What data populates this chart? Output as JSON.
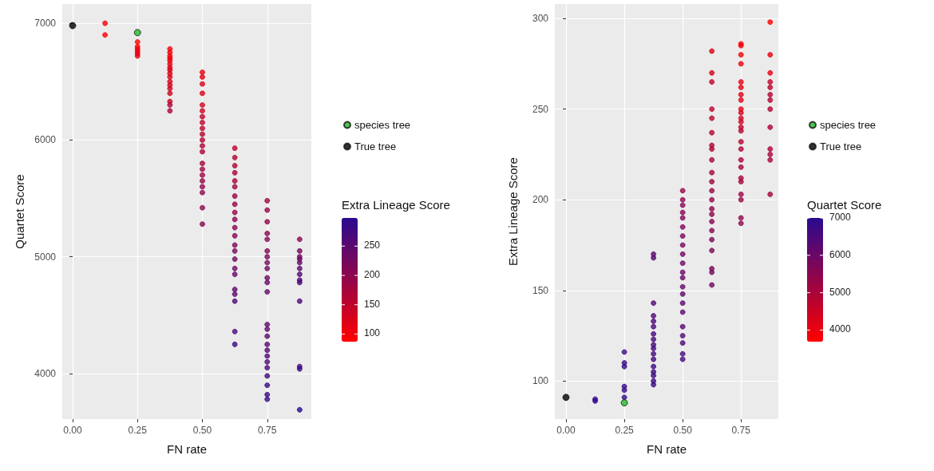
{
  "chart_data": [
    {
      "type": "scatter",
      "xlabel": "FN rate",
      "ylabel": "Quartet Score",
      "clabel": "Extra Lineage Score",
      "clim": [
        87,
        298
      ],
      "cticks": [
        100,
        150,
        200,
        250
      ],
      "xlim": [
        -0.04,
        0.92
      ],
      "xticks": [
        {
          "value": 0,
          "label": "0.00"
        },
        {
          "value": 0.25,
          "label": "0.25"
        },
        {
          "value": 0.5,
          "label": "0.50"
        },
        {
          "value": 0.75,
          "label": "0.75"
        }
      ],
      "ylim": [
        3610,
        7165
      ],
      "yticks": [
        4000,
        5000,
        6000,
        7000
      ],
      "grid": true,
      "legend": "right",
      "marker": "circle",
      "series": [
        {
          "x": [
            0.125,
            0.125,
            0.25,
            0.25,
            0.25,
            0.25,
            0.25,
            0.25,
            0.375,
            0.375,
            0.375,
            0.375,
            0.375,
            0.375,
            0.375,
            0.375,
            0.375,
            0.375,
            0.375,
            0.375,
            0.375,
            0.375,
            0.375,
            0.375,
            0.375,
            0.5,
            0.5,
            0.5,
            0.5,
            0.5,
            0.5,
            0.5,
            0.5,
            0.5,
            0.5,
            0.5,
            0.5,
            0.5,
            0.5,
            0.5,
            0.5,
            0.5,
            0.5,
            0.5,
            0.5,
            0.5,
            0.625,
            0.625,
            0.625,
            0.625,
            0.625,
            0.625,
            0.625,
            0.625,
            0.625,
            0.625,
            0.625,
            0.625,
            0.625,
            0.625,
            0.625,
            0.625,
            0.625,
            0.625,
            0.625,
            0.625,
            0.625,
            0.625,
            0.75,
            0.75,
            0.75,
            0.75,
            0.75,
            0.75,
            0.75,
            0.75,
            0.75,
            0.75,
            0.75,
            0.75,
            0.75,
            0.75,
            0.75,
            0.75,
            0.75,
            0.75,
            0.75,
            0.75,
            0.75,
            0.75,
            0.75,
            0.75,
            0.875,
            0.875,
            0.875,
            0.875,
            0.875,
            0.875,
            0.875,
            0.875,
            0.875,
            0.875,
            0.875,
            0.875,
            0.875
          ],
          "values": [
            7000,
            6900,
            6840,
            6800,
            6780,
            6760,
            6740,
            6720,
            6780,
            6750,
            6720,
            6700,
            6680,
            6650,
            6620,
            6600,
            6570,
            6540,
            6500,
            6470,
            6440,
            6400,
            6330,
            6300,
            6250,
            6580,
            6540,
            6480,
            6400,
            6300,
            6250,
            6200,
            6150,
            6100,
            6050,
            6000,
            5950,
            5900,
            5800,
            5750,
            5700,
            5650,
            5600,
            5550,
            5420,
            5280,
            5930,
            5850,
            5780,
            5720,
            5650,
            5600,
            5520,
            5450,
            5380,
            5320,
            5250,
            5180,
            5100,
            5050,
            4980,
            4900,
            4850,
            4720,
            4680,
            4620,
            4360,
            4250,
            5480,
            5400,
            5300,
            5200,
            5150,
            5050,
            5000,
            4950,
            4900,
            4820,
            4780,
            4700,
            4420,
            4380,
            4320,
            4250,
            4200,
            4150,
            4100,
            4050,
            3980,
            3900,
            3820,
            3780,
            5150,
            5050,
            5000,
            4980,
            4950,
            4900,
            4850,
            4800,
            4780,
            4620,
            4060,
            4040,
            3690
          ],
          "colors": [
            "#fd0001",
            "#fc0002",
            "#fb0003",
            "#f70005",
            "#f50007",
            "#ea010e",
            "#e80110",
            "#e20114",
            "#f40108",
            "#f20109",
            "#ef010b",
            "#ed010c",
            "#ea010e",
            "#e60111",
            "#e30113",
            "#e00115",
            "#de0217",
            "#db0219",
            "#d8021b",
            "#d4021d",
            "#d1021f",
            "#ce0221",
            "#c60326",
            "#ad0437",
            "#ab0439",
            "#e60111",
            "#e30113",
            "#dd0217",
            "#d9021a",
            "#d4021d",
            "#cc0223",
            "#c60326",
            "#c1032a",
            "#bd032c",
            "#b80330",
            "#b50332",
            "#b00435",
            "#ab0439",
            "#a6043c",
            "#a1043f",
            "#9c0543",
            "#970546",
            "#940548",
            "#90054b",
            "#8d054d",
            "#880651",
            "#bc032d",
            "#b50332",
            "#b30433",
            "#a9043a",
            "#a3043e",
            "#9e0542",
            "#990545",
            "#950548",
            "#92054a",
            "#8d054d",
            "#880651",
            "#830654",
            "#7e0657",
            "#77065c",
            "#710760",
            "#6f0762",
            "#680766",
            "#60076c",
            "#5a086f",
            "#4b0879",
            "#46097d",
            "#3a0985",
            "#9a0544",
            "#970546",
            "#8d054d",
            "#8a054f",
            "#830654",
            "#810655",
            "#7b0659",
            "#77065c",
            "#710760",
            "#6d0763",
            "#670767",
            "#650768",
            "#62076a",
            "#60076c",
            "#5c086e",
            "#5a086f",
            "#550873",
            "#520875",
            "#4e0877",
            "#4b0879",
            "#410980",
            "#3c0984",
            "#370987",
            "#360988",
            "#8a054f",
            "#77065c",
            "#74075e",
            "#710760",
            "#650768",
            "#5a086f",
            "#550873",
            "#520875",
            "#4e0877",
            "#4b0879",
            "#46097d",
            "#3c0984",
            "#2a0a90"
          ],
          "cvalues": [
            89,
            90,
            91,
            95,
            97,
            108,
            110,
            116,
            98,
            100,
            103,
            105,
            108,
            112,
            115,
            118,
            120,
            123,
            126,
            130,
            133,
            136,
            143,
            168,
            170,
            112,
            115,
            121,
            125,
            130,
            138,
            143,
            148,
            152,
            157,
            160,
            165,
            170,
            175,
            180,
            185,
            190,
            193,
            197,
            200,
            205,
            153,
            160,
            162,
            172,
            178,
            183,
            188,
            192,
            195,
            200,
            205,
            210,
            215,
            222,
            228,
            230,
            237,
            245,
            250,
            265,
            270,
            282,
            187,
            190,
            200,
            203,
            210,
            212,
            218,
            222,
            228,
            232,
            238,
            240,
            243,
            245,
            248,
            250,
            255,
            258,
            262,
            265,
            275,
            280,
            285,
            286,
            203,
            222,
            225,
            228,
            240,
            250,
            255,
            258,
            262,
            265,
            270,
            280,
            298
          ]
        },
        {
          "name": "species tree",
          "color": "#22bb22",
          "x": [
            0.25
          ],
          "values": [
            6920
          ]
        },
        {
          "name": "True tree",
          "color": "#000000",
          "x": [
            0
          ],
          "values": [
            6980
          ]
        }
      ]
    },
    {
      "type": "scatter",
      "xlabel": "FN rate",
      "ylabel": "Extra Lineage Score",
      "clabel": "Quartet Score",
      "clim": [
        3690,
        7000
      ],
      "cticks": [
        4000,
        5000,
        6000,
        7000
      ],
      "xlim": [
        -0.048,
        0.91
      ],
      "xticks": [
        {
          "value": 0,
          "label": "0.00"
        },
        {
          "value": 0.25,
          "label": "0.25"
        },
        {
          "value": 0.5,
          "label": "0.50"
        },
        {
          "value": 0.75,
          "label": "0.75"
        }
      ],
      "ylim": [
        79,
        308
      ],
      "yticks": [
        100,
        150,
        200,
        250,
        300
      ],
      "grid": true,
      "legend": "right",
      "marker": "circle",
      "series": [
        {
          "x": [
            0.125,
            0.125,
            0.25,
            0.25,
            0.25,
            0.25,
            0.25,
            0.25,
            0.375,
            0.375,
            0.375,
            0.375,
            0.375,
            0.375,
            0.375,
            0.375,
            0.375,
            0.375,
            0.375,
            0.375,
            0.375,
            0.375,
            0.375,
            0.375,
            0.375,
            0.5,
            0.5,
            0.5,
            0.5,
            0.5,
            0.5,
            0.5,
            0.5,
            0.5,
            0.5,
            0.5,
            0.5,
            0.5,
            0.5,
            0.5,
            0.5,
            0.5,
            0.5,
            0.5,
            0.5,
            0.5,
            0.625,
            0.625,
            0.625,
            0.625,
            0.625,
            0.625,
            0.625,
            0.625,
            0.625,
            0.625,
            0.625,
            0.625,
            0.625,
            0.625,
            0.625,
            0.625,
            0.625,
            0.625,
            0.625,
            0.625,
            0.625,
            0.625,
            0.75,
            0.75,
            0.75,
            0.75,
            0.75,
            0.75,
            0.75,
            0.75,
            0.75,
            0.75,
            0.75,
            0.75,
            0.75,
            0.75,
            0.75,
            0.75,
            0.75,
            0.75,
            0.75,
            0.75,
            0.75,
            0.75,
            0.75,
            0.75,
            0.875,
            0.875,
            0.875,
            0.875,
            0.875,
            0.875,
            0.875,
            0.875,
            0.875,
            0.875,
            0.875,
            0.875,
            0.875
          ],
          "values": [
            89,
            90,
            91,
            95,
            97,
            108,
            110,
            116,
            98,
            100,
            103,
            105,
            108,
            112,
            115,
            118,
            120,
            123,
            126,
            130,
            133,
            136,
            143,
            168,
            170,
            112,
            115,
            121,
            125,
            130,
            138,
            143,
            148,
            152,
            157,
            160,
            165,
            170,
            175,
            180,
            185,
            190,
            193,
            197,
            200,
            205,
            153,
            160,
            162,
            172,
            178,
            183,
            188,
            192,
            195,
            200,
            205,
            210,
            215,
            222,
            228,
            230,
            237,
            245,
            250,
            265,
            270,
            282,
            187,
            190,
            200,
            203,
            210,
            212,
            218,
            222,
            228,
            232,
            238,
            240,
            243,
            245,
            248,
            250,
            255,
            258,
            262,
            265,
            275,
            280,
            285,
            286,
            203,
            222,
            225,
            228,
            240,
            250,
            255,
            258,
            262,
            265,
            270,
            280,
            298
          ],
          "colors": [
            "#2a0a90",
            "#300a8c",
            "#340a89",
            "#370987",
            "#380986",
            "#390986",
            "#3b0985",
            "#3c0984",
            "#380986",
            "#3a0985",
            "#3c0984",
            "#3d0983",
            "#3f0982",
            "#410981",
            "#42097f",
            "#44097f",
            "#46097d",
            "#48097c",
            "#4a087a",
            "#4c0879",
            "#4e0878",
            "#510876",
            "#550873",
            "#570872",
            "#5a086f",
            "#45097e",
            "#48097c",
            "#4b0879",
            "#510876",
            "#570872",
            "#5a086f",
            "#5d086d",
            "#61076b",
            "#640769",
            "#670767",
            "#6a0764",
            "#6e0762",
            "#710760",
            "#77065c",
            "#7a065a",
            "#7e0657",
            "#810655",
            "#840653",
            "#870651",
            "#90054b",
            "#990545",
            "#6f0761",
            "#74075e",
            "#79065b",
            "#7c0658",
            "#810655",
            "#840653",
            "#890650",
            "#8e054d",
            "#92054a",
            "#960547",
            "#9b0544",
            "#9f0441",
            "#a4043d",
            "#a7043b",
            "#ac0438",
            "#b10435",
            "#b40432",
            "#bd032d",
            "#bf032b",
            "#c30328",
            "#d4021d",
            "#db0218",
            "#8c054e",
            "#91054a",
            "#970546",
            "#9e0542",
            "#a10440",
            "#a7043b",
            "#ab0439",
            "#ae0437",
            "#b10435",
            "#b60331",
            "#b9032f",
            "#be032c",
            "#d00220",
            "#d3021e",
            "#d6021b",
            "#db0218",
            "#de0216",
            "#e10114",
            "#e50112",
            "#e80110",
            "#ec010d",
            "#f10109",
            "#f70006",
            "#f90004",
            "#a10440",
            "#a7043b",
            "#ab0439",
            "#ac0438",
            "#ae0437",
            "#b10435",
            "#b40432",
            "#b80330",
            "#b9032f",
            "#c30328",
            "#e70110",
            "#e8010f",
            "#ff0000"
          ],
          "cvalues": [
            7000,
            6900,
            6840,
            6800,
            6780,
            6760,
            6740,
            6720,
            6780,
            6750,
            6720,
            6700,
            6680,
            6650,
            6620,
            6600,
            6570,
            6540,
            6500,
            6470,
            6440,
            6400,
            6330,
            6300,
            6250,
            6580,
            6540,
            6480,
            6400,
            6300,
            6250,
            6200,
            6150,
            6100,
            6050,
            6000,
            5950,
            5900,
            5800,
            5750,
            5700,
            5650,
            5600,
            5550,
            5420,
            5280,
            5930,
            5850,
            5780,
            5720,
            5650,
            5600,
            5520,
            5450,
            5380,
            5320,
            5250,
            5180,
            5100,
            5050,
            4980,
            4900,
            4850,
            4720,
            4680,
            4620,
            4360,
            4250,
            5480,
            5400,
            5300,
            5200,
            5150,
            5050,
            5000,
            4950,
            4900,
            4820,
            4780,
            4700,
            4420,
            4380,
            4320,
            4250,
            4200,
            4150,
            4100,
            4050,
            3980,
            3900,
            3820,
            3780,
            5150,
            5050,
            5000,
            4980,
            4950,
            4900,
            4850,
            4800,
            4780,
            4620,
            4060,
            4040,
            3690
          ]
        },
        {
          "name": "species tree",
          "color": "#22bb22",
          "x": [
            0.25
          ],
          "values": [
            88
          ]
        },
        {
          "name": "True tree",
          "color": "#000000",
          "x": [
            0
          ],
          "values": [
            91
          ]
        }
      ]
    }
  ]
}
